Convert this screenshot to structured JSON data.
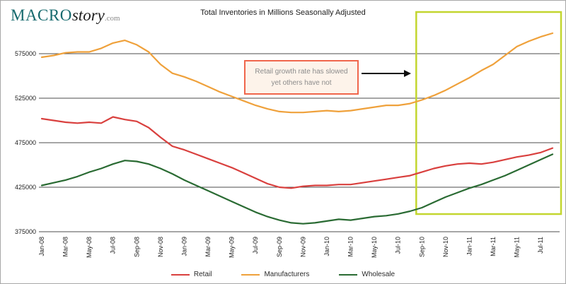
{
  "logo": {
    "macro": "MACRO",
    "story": "story",
    "com": ".com"
  },
  "title": "Total Inventories in Millions Seasonally Adjusted",
  "annotation": {
    "line1": "Retail growth rate has slowed",
    "line2": "yet others have not"
  },
  "chart_data": {
    "type": "line",
    "title": "Total Inventories in Millions Seasonally Adjusted",
    "xlabel": "",
    "ylabel": "",
    "grid": "horizontal",
    "legend_position": "bottom",
    "yticks": [
      375000,
      425000,
      475000,
      525000,
      575000
    ],
    "ylim": [
      375000,
      615000
    ],
    "x_tick_step": 2,
    "x": [
      "Jan-08",
      "Feb-08",
      "Mar-08",
      "Apr-08",
      "May-08",
      "Jun-08",
      "Jul-08",
      "Aug-08",
      "Sep-08",
      "Oct-08",
      "Nov-08",
      "Dec-08",
      "Jan-09",
      "Feb-09",
      "Mar-09",
      "Apr-09",
      "May-09",
      "Jun-09",
      "Jul-09",
      "Aug-09",
      "Sep-09",
      "Oct-09",
      "Nov-09",
      "Dec-09",
      "Jan-10",
      "Feb-10",
      "Mar-10",
      "Apr-10",
      "May-10",
      "Jun-10",
      "Jul-10",
      "Aug-10",
      "Sep-10",
      "Oct-10",
      "Nov-10",
      "Dec-10",
      "Jan-11",
      "Feb-11",
      "Mar-11",
      "Apr-11",
      "May-11",
      "Jun-11",
      "Jul-11",
      "Aug-11"
    ],
    "series": [
      {
        "name": "Retail",
        "color": "#d9403e",
        "values": [
          502000,
          500000,
          498000,
          497000,
          498000,
          497000,
          504000,
          501000,
          499000,
          492000,
          481000,
          471000,
          467000,
          462000,
          457000,
          452000,
          447000,
          441000,
          435000,
          429000,
          425000,
          424000,
          426000,
          427000,
          427000,
          428000,
          428000,
          430000,
          432000,
          434000,
          436000,
          438000,
          442000,
          446000,
          449000,
          451000,
          452000,
          451000,
          453000,
          456000,
          459000,
          461000,
          464000,
          469000
        ]
      },
      {
        "name": "Manufacturers",
        "color": "#efa13b",
        "values": [
          571000,
          573000,
          576000,
          577000,
          577000,
          581000,
          587000,
          590000,
          585000,
          577000,
          563000,
          553000,
          549000,
          544000,
          538000,
          532000,
          527000,
          522000,
          517000,
          513000,
          510000,
          509000,
          509000,
          510000,
          511000,
          510000,
          511000,
          513000,
          515000,
          517000,
          517000,
          519000,
          523000,
          528000,
          534000,
          541000,
          548000,
          556000,
          563000,
          573000,
          583000,
          589000,
          594000,
          598000
        ]
      },
      {
        "name": "Wholesale",
        "color": "#2a6b33",
        "values": [
          427000,
          430000,
          433000,
          437000,
          442000,
          446000,
          451000,
          455000,
          454000,
          451000,
          446000,
          440000,
          433000,
          427000,
          421000,
          415000,
          409000,
          403000,
          397000,
          392000,
          388000,
          385000,
          384000,
          385000,
          387000,
          389000,
          388000,
          390000,
          392000,
          393000,
          395000,
          398000,
          402000,
          408000,
          414000,
          419000,
          424000,
          428000,
          433000,
          438000,
          444000,
          450000,
          456000,
          462000
        ]
      }
    ],
    "highlight_region": {
      "from": "Sep-10",
      "to": "Aug-11",
      "color": "#c3d62f"
    }
  }
}
